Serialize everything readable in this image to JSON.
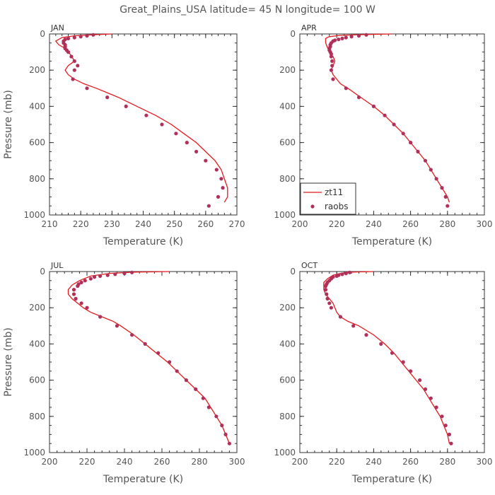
{
  "figure": {
    "title": "Great_Plains_USA  latitude= 45 N longitude= 100 W"
  },
  "colors": {
    "model_line": "#e31a1c",
    "obs_points": "#b0305a",
    "axis": "#333333",
    "text": "#555555"
  },
  "chart_data": [
    {
      "type": "line",
      "panel": "JAN",
      "xlabel": "Temperature (K)",
      "ylabel": "Pressure (mb)",
      "xlim": [
        210,
        270
      ],
      "ylim": [
        1000,
        0
      ],
      "xticks": [
        210,
        220,
        230,
        240,
        250,
        260,
        270
      ],
      "yticks": [
        0,
        200,
        400,
        600,
        800,
        1000
      ],
      "legend": false,
      "series": [
        {
          "name": "zt11",
          "kind": "line",
          "points": [
            [
              230,
              0
            ],
            [
              223,
              5
            ],
            [
              218,
              10
            ],
            [
              214,
              20
            ],
            [
              212,
              40
            ],
            [
              213,
              60
            ],
            [
              215,
              80
            ],
            [
              216,
              100
            ],
            [
              217,
              120
            ],
            [
              218,
              150
            ],
            [
              216,
              175
            ],
            [
              215,
              200
            ],
            [
              216,
              225
            ],
            [
              218,
              250
            ],
            [
              221,
              275
            ],
            [
              225,
              300
            ],
            [
              232,
              350
            ],
            [
              238,
              400
            ],
            [
              244,
              450
            ],
            [
              249,
              500
            ],
            [
              253,
              550
            ],
            [
              257,
              600
            ],
            [
              260,
              650
            ],
            [
              263,
              700
            ],
            [
              265,
              750
            ],
            [
              266,
              800
            ],
            [
              267,
              850
            ],
            [
              267,
              900
            ],
            [
              266,
              930
            ]
          ]
        },
        {
          "name": "raobs",
          "kind": "scatter",
          "points": [
            [
              224,
              5
            ],
            [
              222,
              10
            ],
            [
              220,
              15
            ],
            [
              218,
              20
            ],
            [
              216,
              25
            ],
            [
              215,
              30
            ],
            [
              214.5,
              40
            ],
            [
              214.5,
              50
            ],
            [
              215,
              60
            ],
            [
              215,
              70
            ],
            [
              215,
              80
            ],
            [
              215.5,
              90
            ],
            [
              216,
              100
            ],
            [
              217,
              125
            ],
            [
              218,
              150
            ],
            [
              219,
              175
            ],
            [
              218,
              200
            ],
            [
              217.5,
              250
            ],
            [
              222,
              300
            ],
            [
              228.5,
              350
            ],
            [
              234.5,
              400
            ],
            [
              241,
              450
            ],
            [
              246,
              500
            ],
            [
              250.5,
              550
            ],
            [
              254,
              600
            ],
            [
              257,
              650
            ],
            [
              260,
              700
            ],
            [
              263.5,
              750
            ],
            [
              265,
              800
            ],
            [
              265.5,
              850
            ],
            [
              264,
              900
            ],
            [
              261,
              950
            ]
          ]
        }
      ]
    },
    {
      "type": "line",
      "panel": "APR",
      "xlabel": "Temperature (K)",
      "ylabel": "",
      "xlim": [
        200,
        300
      ],
      "ylim": [
        1000,
        0
      ],
      "xticks": [
        200,
        220,
        240,
        260,
        280,
        300
      ],
      "yticks": [
        0,
        200,
        400,
        600,
        800,
        1000
      ],
      "legend": true,
      "legend_position": "bottom-left",
      "series": [
        {
          "name": "zt11",
          "kind": "line",
          "points": [
            [
              250,
              0
            ],
            [
              235,
              3
            ],
            [
              222,
              8
            ],
            [
              216,
              15
            ],
            [
              214,
              25
            ],
            [
              214,
              50
            ],
            [
              215,
              75
            ],
            [
              216,
              100
            ],
            [
              218,
              125
            ],
            [
              219,
              150
            ],
            [
              218,
              175
            ],
            [
              217,
              200
            ],
            [
              218,
              225
            ],
            [
              220,
              250
            ],
            [
              222,
              275
            ],
            [
              226,
              300
            ],
            [
              233,
              350
            ],
            [
              240,
              400
            ],
            [
              246,
              450
            ],
            [
              251,
              500
            ],
            [
              256,
              550
            ],
            [
              260,
              600
            ],
            [
              264,
              650
            ],
            [
              268,
              700
            ],
            [
              271,
              750
            ],
            [
              274,
              800
            ],
            [
              277,
              850
            ],
            [
              280,
              900
            ],
            [
              281,
              930
            ]
          ]
        },
        {
          "name": "raobs",
          "kind": "scatter",
          "points": [
            [
              236,
              5
            ],
            [
              232,
              10
            ],
            [
              228,
              15
            ],
            [
              225,
              20
            ],
            [
              223,
              25
            ],
            [
              221,
              30
            ],
            [
              219,
              35
            ],
            [
              218,
              40
            ],
            [
              217,
              50
            ],
            [
              216.5,
              60
            ],
            [
              216.5,
              70
            ],
            [
              216,
              80
            ],
            [
              216,
              90
            ],
            [
              216.5,
              100
            ],
            [
              217,
              110
            ],
            [
              217,
              125
            ],
            [
              217.5,
              150
            ],
            [
              217.5,
              175
            ],
            [
              217,
              200
            ],
            [
              218,
              250
            ],
            [
              225,
              300
            ],
            [
              232,
              350
            ],
            [
              240,
              400
            ],
            [
              246,
              450
            ],
            [
              251,
              500
            ],
            [
              256,
              550
            ],
            [
              260,
              600
            ],
            [
              264,
              650
            ],
            [
              268,
              700
            ],
            [
              271,
              750
            ],
            [
              274,
              800
            ],
            [
              277,
              850
            ],
            [
              279,
              900
            ],
            [
              280,
              950
            ]
          ]
        }
      ]
    },
    {
      "type": "line",
      "panel": "JUL",
      "xlabel": "Temperature (K)",
      "ylabel": "Pressure (mb)",
      "xlim": [
        200,
        300
      ],
      "ylim": [
        1000,
        0
      ],
      "xticks": [
        200,
        220,
        240,
        260,
        280,
        300
      ],
      "yticks": [
        0,
        200,
        400,
        600,
        800,
        1000
      ],
      "legend": false,
      "series": [
        {
          "name": "zt11",
          "kind": "line",
          "points": [
            [
              264,
              0
            ],
            [
              245,
              3
            ],
            [
              232,
              10
            ],
            [
              222,
              25
            ],
            [
              216,
              50
            ],
            [
              212,
              75
            ],
            [
              210,
              100
            ],
            [
              210,
              125
            ],
            [
              212,
              150
            ],
            [
              215,
              175
            ],
            [
              218,
              200
            ],
            [
              222,
              225
            ],
            [
              228,
              250
            ],
            [
              234,
              275
            ],
            [
              238,
              300
            ],
            [
              245,
              350
            ],
            [
              251,
              400
            ],
            [
              257,
              450
            ],
            [
              263,
              500
            ],
            [
              268,
              550
            ],
            [
              273,
              600
            ],
            [
              278,
              650
            ],
            [
              283,
              700
            ],
            [
              286,
              750
            ],
            [
              289,
              800
            ],
            [
              292,
              850
            ],
            [
              294,
              900
            ],
            [
              296,
              950
            ]
          ]
        },
        {
          "name": "raobs",
          "kind": "scatter",
          "points": [
            [
              244,
              5
            ],
            [
              240,
              10
            ],
            [
              235,
              15
            ],
            [
              231,
              20
            ],
            [
              227,
              25
            ],
            [
              224,
              30
            ],
            [
              222,
              40
            ],
            [
              219,
              50
            ],
            [
              217,
              60
            ],
            [
              215.5,
              70
            ],
            [
              215,
              80
            ],
            [
              213,
              100
            ],
            [
              213,
              125
            ],
            [
              214,
              150
            ],
            [
              217,
              175
            ],
            [
              220,
              200
            ],
            [
              227,
              250
            ],
            [
              236,
              300
            ],
            [
              244,
              350
            ],
            [
              251,
              400
            ],
            [
              258,
              450
            ],
            [
              264,
              500
            ],
            [
              268,
              550
            ],
            [
              273,
              600
            ],
            [
              278,
              650
            ],
            [
              282,
              700
            ],
            [
              285,
              750
            ],
            [
              289,
              800
            ],
            [
              292,
              850
            ],
            [
              294,
              900
            ],
            [
              296,
              950
            ]
          ]
        }
      ]
    },
    {
      "type": "line",
      "panel": "OCT",
      "xlabel": "Temperature (K)",
      "ylabel": "",
      "xlim": [
        200,
        300
      ],
      "ylim": [
        1000,
        0
      ],
      "xticks": [
        200,
        220,
        240,
        260,
        280,
        300
      ],
      "yticks": [
        0,
        200,
        400,
        600,
        800,
        1000
      ],
      "legend": false,
      "series": [
        {
          "name": "zt11",
          "kind": "line",
          "points": [
            [
              240,
              0
            ],
            [
              228,
              3
            ],
            [
              222,
              10
            ],
            [
              218,
              20
            ],
            [
              215,
              40
            ],
            [
              213,
              60
            ],
            [
              213,
              80
            ],
            [
              213,
              100
            ],
            [
              214,
              125
            ],
            [
              216,
              150
            ],
            [
              218,
              175
            ],
            [
              219,
              200
            ],
            [
              220,
              225
            ],
            [
              222,
              250
            ],
            [
              226,
              275
            ],
            [
              232,
              300
            ],
            [
              240,
              350
            ],
            [
              246,
              400
            ],
            [
              251,
              450
            ],
            [
              255,
              500
            ],
            [
              259,
              550
            ],
            [
              263,
              600
            ],
            [
              267,
              650
            ],
            [
              270,
              700
            ],
            [
              273,
              750
            ],
            [
              276,
              800
            ],
            [
              278,
              850
            ],
            [
              280,
              900
            ],
            [
              281,
              950
            ]
          ]
        },
        {
          "name": "raobs",
          "kind": "scatter",
          "points": [
            [
              227,
              5
            ],
            [
              225,
              10
            ],
            [
              223,
              15
            ],
            [
              221,
              20
            ],
            [
              220,
              25
            ],
            [
              218,
              30
            ],
            [
              217,
              40
            ],
            [
              216,
              50
            ],
            [
              215,
              60
            ],
            [
              214.5,
              70
            ],
            [
              214,
              80
            ],
            [
              214,
              100
            ],
            [
              214.5,
              125
            ],
            [
              215,
              150
            ],
            [
              216,
              175
            ],
            [
              217,
              200
            ],
            [
              222,
              250
            ],
            [
              229,
              300
            ],
            [
              236,
              350
            ],
            [
              244,
              400
            ],
            [
              250,
              450
            ],
            [
              256,
              500
            ],
            [
              260,
              550
            ],
            [
              265,
              600
            ],
            [
              268,
              650
            ],
            [
              271,
              700
            ],
            [
              274,
              750
            ],
            [
              277,
              800
            ],
            [
              279,
              850
            ],
            [
              281,
              900
            ],
            [
              282,
              950
            ]
          ]
        }
      ]
    }
  ]
}
